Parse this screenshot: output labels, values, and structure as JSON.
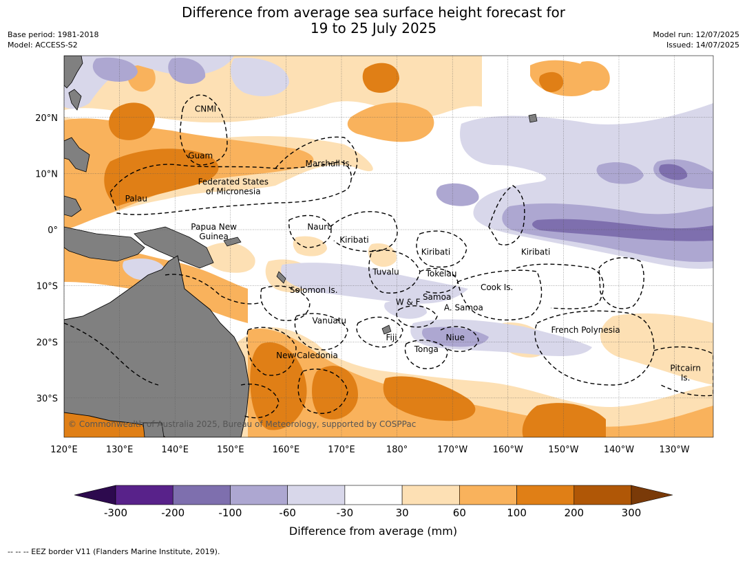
{
  "title": {
    "line1": "Difference from average sea surface height forecast for",
    "line2": "19 to 25 July 2025"
  },
  "meta": {
    "base_period": "Base period: 1981-2018",
    "model": "Model: ACCESS-S2",
    "model_run": "Model run: 12/07/2025",
    "issued": "Issued: 14/07/2025"
  },
  "map": {
    "lon_range": [
      120,
      237
    ],
    "lat_range": [
      -37,
      31
    ],
    "lon_ticks": [
      {
        "lon": 120,
        "label": "120°E"
      },
      {
        "lon": 130,
        "label": "130°E"
      },
      {
        "lon": 140,
        "label": "140°E"
      },
      {
        "lon": 150,
        "label": "150°E"
      },
      {
        "lon": 160,
        "label": "160°E"
      },
      {
        "lon": 170,
        "label": "170°E"
      },
      {
        "lon": 180,
        "label": "180°"
      },
      {
        "lon": 190,
        "label": "170°W"
      },
      {
        "lon": 200,
        "label": "160°W"
      },
      {
        "lon": 210,
        "label": "150°W"
      },
      {
        "lon": 220,
        "label": "140°W"
      },
      {
        "lon": 230,
        "label": "130°W"
      }
    ],
    "lat_ticks": [
      {
        "lat": 20,
        "label": "20°N"
      },
      {
        "lat": 10,
        "label": "10°N"
      },
      {
        "lat": 0,
        "label": "0°"
      },
      {
        "lat": -10,
        "label": "10°S"
      },
      {
        "lat": -20,
        "label": "20°S"
      },
      {
        "lat": -30,
        "label": "30°S"
      }
    ],
    "region_labels": [
      {
        "text": "CNMI",
        "lon": 145.5,
        "lat": 21
      },
      {
        "text": "Guam",
        "lon": 144.6,
        "lat": 12.7
      },
      {
        "text": "Federated States",
        "lon": 150.5,
        "lat": 8
      },
      {
        "text": "of Micronesia",
        "lon": 150.5,
        "lat": 6.3
      },
      {
        "text": "Palau",
        "lon": 133,
        "lat": 5
      },
      {
        "text": "Marshall Is.",
        "lon": 167.7,
        "lat": 11.3
      },
      {
        "text": "Nauru",
        "lon": 166.1,
        "lat": 0
      },
      {
        "text": "Papua New",
        "lon": 147,
        "lat": 0
      },
      {
        "text": "Guinea",
        "lon": 147,
        "lat": -1.7
      },
      {
        "text": "Kiribati",
        "lon": 172.3,
        "lat": -2.3
      },
      {
        "text": "Kiribati",
        "lon": 187,
        "lat": -4.5
      },
      {
        "text": "Kiribati",
        "lon": 205,
        "lat": -4.5
      },
      {
        "text": "Tuvalu",
        "lon": 178,
        "lat": -8
      },
      {
        "text": "Tokelau",
        "lon": 188,
        "lat": -8.3
      },
      {
        "text": "Cook Is.",
        "lon": 198,
        "lat": -10.8
      },
      {
        "text": "Solomon Is.",
        "lon": 165,
        "lat": -11.3
      },
      {
        "text": "W & F",
        "lon": 182,
        "lat": -13.4
      },
      {
        "text": "Samoa",
        "lon": 187.2,
        "lat": -12.5
      },
      {
        "text": "A. Samoa",
        "lon": 192,
        "lat": -14.4
      },
      {
        "text": "Vanuatu",
        "lon": 167.8,
        "lat": -16.7
      },
      {
        "text": "Fiji",
        "lon": 179,
        "lat": -19.7
      },
      {
        "text": "Niue",
        "lon": 190.5,
        "lat": -19.7
      },
      {
        "text": "Tonga",
        "lon": 185.3,
        "lat": -21.8
      },
      {
        "text": "French Polynesia",
        "lon": 214,
        "lat": -18.4
      },
      {
        "text": "New Caledonia",
        "lon": 163.8,
        "lat": -22.9
      },
      {
        "text": "Pitcairn",
        "lon": 232,
        "lat": -25.2
      },
      {
        "text": "Is.",
        "lon": 232,
        "lat": -26.9
      }
    ],
    "copyright": "© Commonwealth of Australia 2025, Bureau of Meteorology, supported by COSPPac"
  },
  "colorbar": {
    "ticks": [
      "-300",
      "-200",
      "-100",
      "-60",
      "-30",
      "30",
      "60",
      "100",
      "200",
      "300"
    ],
    "colors": [
      "#2d0a4e",
      "#58228a",
      "#7e6fae",
      "#ada7d1",
      "#d8d7ea",
      "#ffffff",
      "#fde0b4",
      "#f9b25c",
      "#e07f16",
      "#b05706",
      "#7a3a08"
    ],
    "label": "Difference from average (mm)"
  },
  "footer": "--  --  -- EEZ border V11 (Flanders Marine Institute, 2019)."
}
